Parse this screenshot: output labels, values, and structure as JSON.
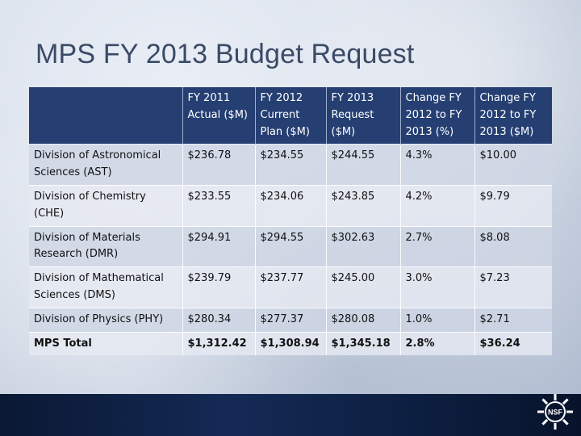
{
  "slide": {
    "title": "MPS FY 2013 Budget Request"
  },
  "table": {
    "headers": [
      "",
      "FY 2011 Actual ($M)",
      "FY 2012 Current Plan ($M)",
      "FY 2013 Request ($M)",
      "Change FY 2012 to FY 2013 (%)",
      "Change FY 2012 to FY 2013 ($M)"
    ],
    "rows": [
      [
        "Division of Astronomical Sciences (AST)",
        "$236.78",
        "$234.55",
        "$244.55",
        "4.3%",
        "$10.00"
      ],
      [
        "Division of Chemistry (CHE)",
        "$233.55",
        "$234.06",
        "$243.85",
        "4.2%",
        "$9.79"
      ],
      [
        "Division of Materials Research (DMR)",
        "$294.91",
        "$294.55",
        "$302.63",
        "2.7%",
        "$8.08"
      ],
      [
        "Division of Mathematical Sciences (DMS)",
        "$239.79",
        "$237.77",
        "$245.00",
        "3.0%",
        "$7.23"
      ],
      [
        "Division of Physics (PHY)",
        "$280.34",
        "$277.37",
        "$280.08",
        "1.0%",
        "$2.71"
      ],
      [
        "MPS Total",
        "$1,312.42",
        "$1,308.94",
        "$1,345.18",
        "2.8%",
        "$36.24"
      ]
    ]
  },
  "footer": {
    "logo_icon": "nsf-logo-icon",
    "logo_text": "NSF"
  }
}
